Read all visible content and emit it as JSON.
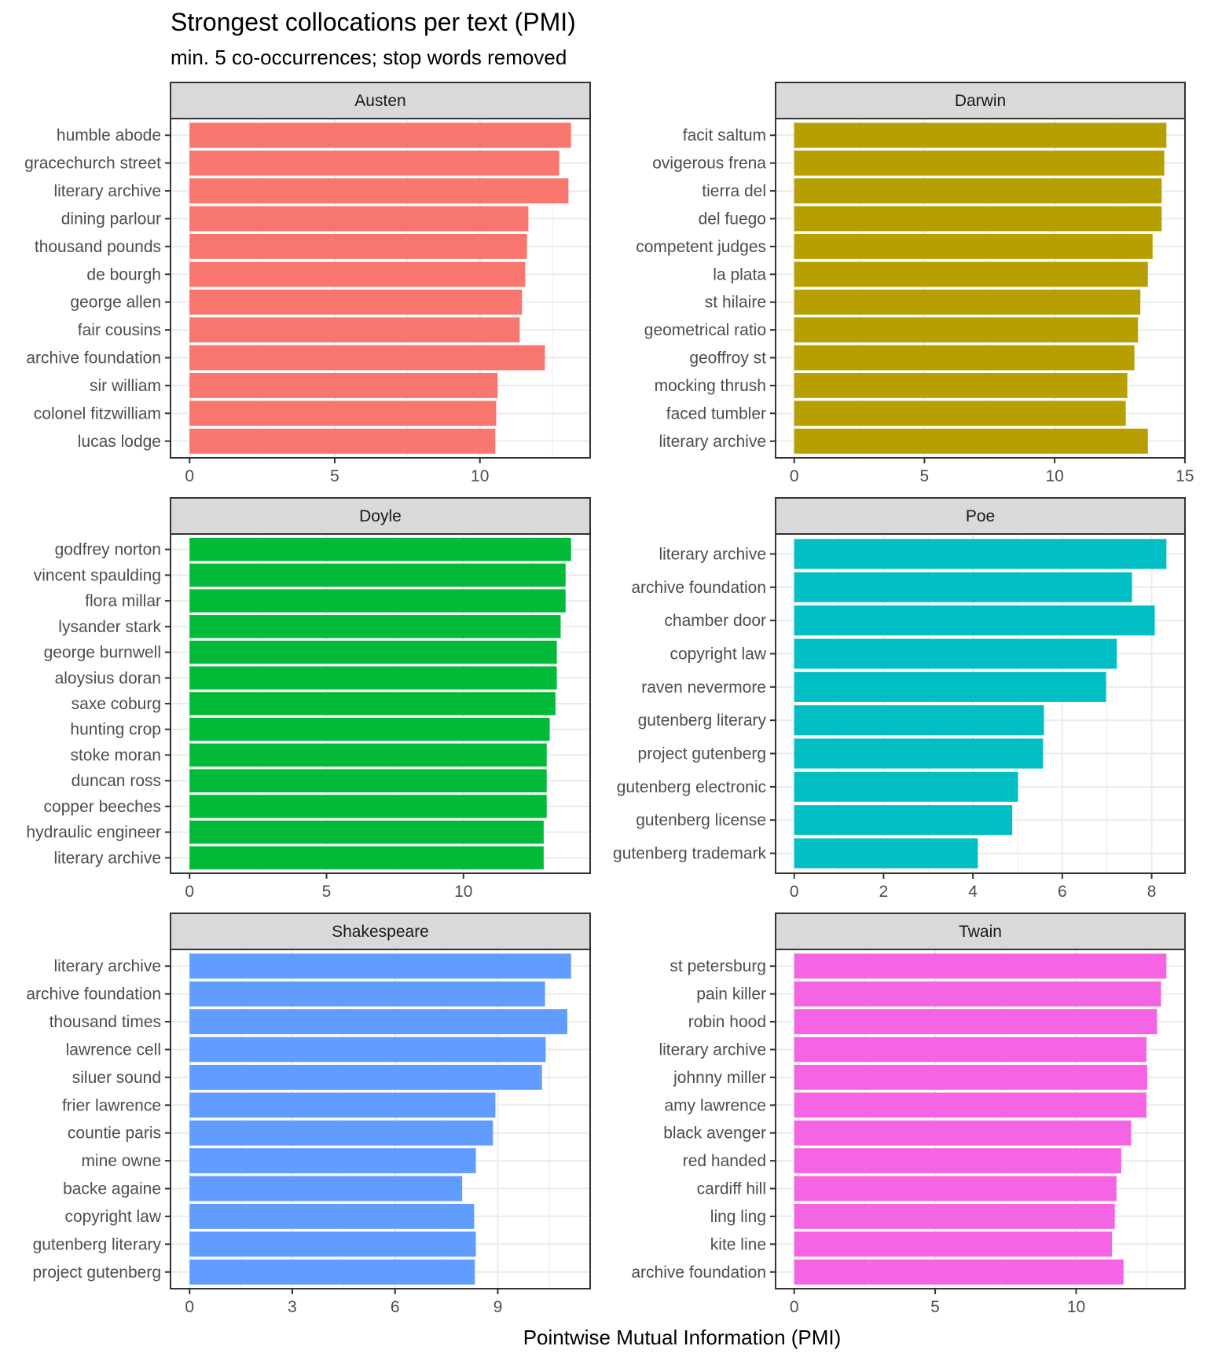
{
  "chart_data": {
    "type": "bar",
    "orientation": "horizontal",
    "title": "Strongest collocations per text (PMI)",
    "subtitle": "min. 5 co-occurrences; stop words removed",
    "xlabel": "Pointwise Mutual Information (PMI)",
    "ylabel": "",
    "facet_layout": "3 rows x 2 columns, free scales",
    "grid": true,
    "legend": "none",
    "panels": [
      {
        "name": "Austen",
        "color": "#F8766D",
        "ticks": [
          0,
          5,
          10
        ],
        "categories": [
          "humble abode",
          "gracechurch street",
          "literary archive",
          "dining parlour",
          "thousand pounds",
          "de bourgh",
          "george allen",
          "fair cousins",
          "archive foundation",
          "sir william",
          "colonel fitzwilliam",
          "lucas lodge"
        ],
        "values": [
          13.14,
          12.73,
          13.05,
          11.67,
          11.62,
          11.56,
          11.45,
          11.37,
          12.24,
          10.61,
          10.56,
          10.53
        ]
      },
      {
        "name": "Darwin",
        "color": "#B79F00",
        "ticks": [
          0,
          5,
          10,
          15
        ],
        "categories": [
          "facit saltum",
          "ovigerous frena",
          "tierra del",
          "del fuego",
          "competent judges",
          "la plata",
          "st hilaire",
          "geometrical ratio",
          "geoffroy st",
          "mocking thrush",
          "faced tumbler",
          "literary archive"
        ],
        "values": [
          14.29,
          14.21,
          14.11,
          14.11,
          13.76,
          13.58,
          13.29,
          13.2,
          13.06,
          12.79,
          12.73,
          13.58
        ]
      },
      {
        "name": "Doyle",
        "color": "#00BA38",
        "ticks": [
          0,
          5,
          10
        ],
        "categories": [
          "godfrey norton",
          "vincent spaulding",
          "flora millar",
          "lysander stark",
          "george burnwell",
          "aloysius doran",
          "saxe coburg",
          "hunting crop",
          "stoke moran",
          "duncan ross",
          "copper beeches",
          "hydraulic engineer",
          "literary archive"
        ],
        "values": [
          13.93,
          13.73,
          13.73,
          13.55,
          13.41,
          13.41,
          13.36,
          13.15,
          13.04,
          13.04,
          13.04,
          12.93,
          12.93
        ]
      },
      {
        "name": "Poe",
        "color": "#00BFC4",
        "ticks": [
          0,
          2,
          4,
          6,
          8
        ],
        "categories": [
          "literary archive",
          "archive foundation",
          "chamber door",
          "copyright law",
          "raven nevermore",
          "gutenberg literary",
          "project gutenberg",
          "gutenberg electronic",
          "gutenberg license",
          "gutenberg trademark"
        ],
        "values": [
          8.33,
          7.56,
          8.07,
          7.22,
          6.98,
          5.59,
          5.57,
          5.01,
          4.88,
          4.11
        ]
      },
      {
        "name": "Shakespeare",
        "color": "#619CFF",
        "ticks": [
          0,
          3,
          6,
          9
        ],
        "categories": [
          "literary archive",
          "archive foundation",
          "thousand times",
          "lawrence cell",
          "siluer sound",
          "frier lawrence",
          "countie paris",
          "mine owne",
          "backe againe",
          "copyright law",
          "gutenberg literary",
          "project gutenberg"
        ],
        "values": [
          11.14,
          10.38,
          11.03,
          10.4,
          10.29,
          8.93,
          8.86,
          8.36,
          7.96,
          8.31,
          8.36,
          8.33
        ]
      },
      {
        "name": "Twain",
        "color": "#F564E3",
        "ticks": [
          0,
          5,
          10
        ],
        "categories": [
          "st petersburg",
          "pain killer",
          "robin hood",
          "literary archive",
          "johnny miller",
          "amy lawrence",
          "black avenger",
          "red handed",
          "cardiff hill",
          "ling ling",
          "kite line",
          "archive foundation"
        ],
        "values": [
          13.2,
          13.01,
          12.87,
          12.49,
          12.52,
          12.49,
          11.95,
          11.6,
          11.43,
          11.37,
          11.27,
          11.68
        ]
      }
    ]
  }
}
